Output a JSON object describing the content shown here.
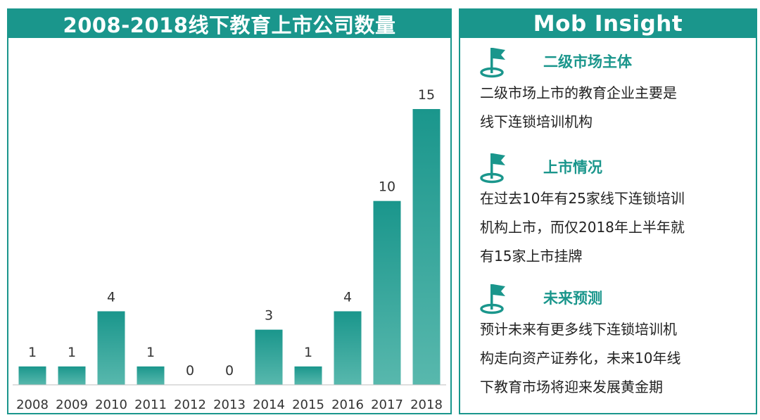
{
  "colors": {
    "accent": "#1a968c",
    "bar": "#1a968c",
    "bar_light": "#58b8ad"
  },
  "left_panel": {
    "title": "2008-2018线下教育上市公司数量"
  },
  "right_panel": {
    "title": "Mob Insight",
    "sections": [
      {
        "icon": "flag-icon",
        "title": "二级市场主体",
        "lines": [
          "二级市场上市的教育企业主要是",
          "线下连锁培训机构"
        ]
      },
      {
        "icon": "flag-icon",
        "title": "上市情况",
        "lines": [
          "在过去10年有25家线下连锁培训",
          "机构上市，而仅2018年上半年就",
          "有15家上市挂牌"
        ]
      },
      {
        "icon": "flag-icon",
        "title": "未来预测",
        "lines": [
          "预计未来有更多线下连锁培训机",
          "构走向资产证券化，未来10年线",
          "下教育市场将迎来发展黄金期"
        ]
      }
    ]
  },
  "chart_data": {
    "type": "bar",
    "title": "2008-2018线下教育上市公司数量",
    "xlabel": "",
    "ylabel": "",
    "categories": [
      "2008",
      "2009",
      "2010",
      "2011",
      "2012",
      "2013",
      "2014",
      "2015",
      "2016",
      "2017",
      "2018"
    ],
    "values": [
      1,
      1,
      4,
      1,
      0,
      0,
      3,
      1,
      4,
      10,
      15
    ],
    "ylim": [
      0,
      15
    ],
    "grid": false,
    "legend": "none",
    "data_labels": true
  }
}
